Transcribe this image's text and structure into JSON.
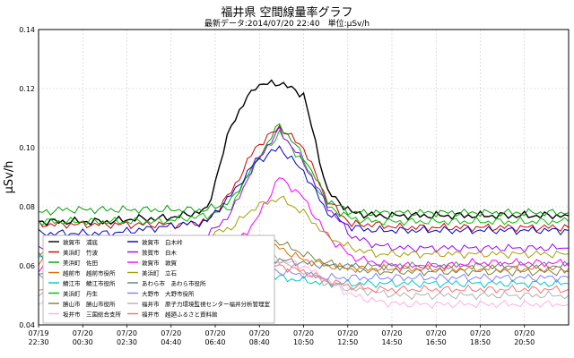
{
  "title": "福井県 空間線量率グラフ",
  "subtitle": "最新データ:2014/07/20 22:40　単位:μSv/h",
  "chart_data": {
    "type": "line",
    "ylabel": "μSv/h",
    "ylim": [
      0.04,
      0.14
    ],
    "yticks": [
      "0.04",
      "0.06",
      "0.08",
      "0.10",
      "0.12",
      "0.14"
    ],
    "xtick_labels": [
      [
        "07/19",
        "22:30"
      ],
      [
        "07/20",
        "00:30"
      ],
      [
        "07/20",
        "02:30"
      ],
      [
        "07/20",
        "04:40"
      ],
      [
        "07/20",
        "06:40"
      ],
      [
        "07/20",
        "08:40"
      ],
      [
        "07/20",
        "10:50"
      ],
      [
        "07/20",
        "12:50"
      ],
      [
        "07/20",
        "14:50"
      ],
      [
        "07/20",
        "16:50"
      ],
      [
        "07/20",
        "18:50"
      ],
      [
        "07/20",
        "20:50"
      ]
    ],
    "grid": true,
    "legend_position": "bottom-left",
    "series": [
      {
        "name": "敦賀市　浦底",
        "color": "#000000",
        "values": [
          0.075,
          0.075,
          0.075,
          0.075,
          0.076,
          0.076,
          0.077,
          0.079,
          0.108,
          0.121,
          0.122,
          0.118,
          0.085,
          0.078,
          0.077,
          0.077,
          0.077,
          0.077,
          0.077,
          0.077,
          0.077,
          0.077,
          0.077
        ]
      },
      {
        "name": "美浜町　竹波",
        "color": "#d00000",
        "values": [
          0.074,
          0.074,
          0.074,
          0.074,
          0.074,
          0.074,
          0.074,
          0.075,
          0.085,
          0.1,
          0.107,
          0.1,
          0.082,
          0.074,
          0.074,
          0.073,
          0.073,
          0.073,
          0.073,
          0.073,
          0.073,
          0.073,
          0.073
        ]
      },
      {
        "name": "美浜町　佐田",
        "color": "#00a000",
        "values": [
          0.078,
          0.079,
          0.079,
          0.079,
          0.079,
          0.079,
          0.079,
          0.079,
          0.082,
          0.095,
          0.108,
          0.097,
          0.082,
          0.078,
          0.078,
          0.078,
          0.078,
          0.078,
          0.078,
          0.078,
          0.078,
          0.078,
          0.078
        ]
      },
      {
        "name": "越前市　越前市役所",
        "color": "#e07000",
        "values": [
          0.061,
          0.061,
          0.061,
          0.061,
          0.061,
          0.062,
          0.063,
          0.065,
          0.067,
          0.068,
          0.066,
          0.062,
          0.06,
          0.059,
          0.059,
          0.059,
          0.059,
          0.059,
          0.059,
          0.059,
          0.059,
          0.059,
          0.059
        ]
      },
      {
        "name": "鯖江市　鯖江市役所",
        "color": "#00c8c8",
        "values": [
          0.063,
          0.062,
          0.062,
          0.062,
          0.061,
          0.062,
          0.063,
          0.065,
          0.06,
          0.058,
          0.056,
          0.055,
          0.054,
          0.054,
          0.054,
          0.054,
          0.054,
          0.054,
          0.054,
          0.054,
          0.054,
          0.054,
          0.054
        ]
      },
      {
        "name": "美浜町　丹生",
        "color": "#00c000",
        "values": [
          0.075,
          0.075,
          0.075,
          0.075,
          0.075,
          0.075,
          0.076,
          0.077,
          0.08,
          0.095,
          0.105,
          0.095,
          0.08,
          0.076,
          0.075,
          0.075,
          0.075,
          0.075,
          0.075,
          0.075,
          0.075,
          0.075,
          0.075
        ]
      },
      {
        "name": "勝山市　勝山市役所",
        "color": "#808040",
        "values": [
          0.058,
          0.058,
          0.058,
          0.058,
          0.058,
          0.059,
          0.06,
          0.063,
          0.068,
          0.07,
          0.068,
          0.064,
          0.061,
          0.059,
          0.058,
          0.058,
          0.058,
          0.058,
          0.058,
          0.058,
          0.058,
          0.058,
          0.058
        ]
      },
      {
        "name": "坂井市　三国総合支所",
        "color": "#ffb0e0",
        "values": [
          0.047,
          0.047,
          0.047,
          0.047,
          0.047,
          0.047,
          0.047,
          0.048,
          0.052,
          0.058,
          0.062,
          0.06,
          0.055,
          0.05,
          0.048,
          0.047,
          0.047,
          0.047,
          0.047,
          0.047,
          0.047,
          0.047,
          0.047
        ]
      },
      {
        "name": "敦賀市　白木峠",
        "color": "#0000c0",
        "values": [
          0.071,
          0.071,
          0.071,
          0.071,
          0.072,
          0.073,
          0.074,
          0.075,
          0.084,
          0.095,
          0.1,
          0.092,
          0.078,
          0.073,
          0.072,
          0.072,
          0.072,
          0.072,
          0.072,
          0.072,
          0.072,
          0.072,
          0.072
        ]
      },
      {
        "name": "敦賀市　白木",
        "color": "#a000ff",
        "values": [
          0.066,
          0.066,
          0.066,
          0.066,
          0.066,
          0.067,
          0.068,
          0.07,
          0.078,
          0.095,
          0.106,
          0.095,
          0.08,
          0.07,
          0.067,
          0.066,
          0.066,
          0.066,
          0.066,
          0.066,
          0.066,
          0.066,
          0.066
        ]
      },
      {
        "name": "敦賀市　敦賀",
        "color": "#ff00ff",
        "values": [
          0.059,
          0.059,
          0.059,
          0.059,
          0.059,
          0.059,
          0.06,
          0.062,
          0.066,
          0.075,
          0.09,
          0.083,
          0.07,
          0.063,
          0.061,
          0.06,
          0.06,
          0.06,
          0.061,
          0.061,
          0.061,
          0.061,
          0.061
        ]
      },
      {
        "name": "美浜町　立石",
        "color": "#a0a000",
        "values": [
          0.064,
          0.064,
          0.064,
          0.064,
          0.065,
          0.066,
          0.068,
          0.07,
          0.073,
          0.08,
          0.083,
          0.078,
          0.07,
          0.066,
          0.064,
          0.064,
          0.064,
          0.064,
          0.064,
          0.064,
          0.064,
          0.064,
          0.064
        ]
      },
      {
        "name": "あわら市　あわら市役所",
        "color": "#608080",
        "values": [
          0.064,
          0.063,
          0.063,
          0.063,
          0.063,
          0.064,
          0.065,
          0.066,
          0.064,
          0.063,
          0.062,
          0.061,
          0.06,
          0.06,
          0.06,
          0.06,
          0.06,
          0.06,
          0.06,
          0.06,
          0.06,
          0.06,
          0.06
        ]
      },
      {
        "name": "大野市　大野市役所",
        "color": "#8080ff",
        "values": [
          0.057,
          0.057,
          0.057,
          0.057,
          0.057,
          0.058,
          0.059,
          0.063,
          0.064,
          0.06,
          0.058,
          0.057,
          0.056,
          0.056,
          0.056,
          0.056,
          0.056,
          0.056,
          0.056,
          0.056,
          0.056,
          0.056,
          0.056
        ]
      },
      {
        "name": "福井市　原子力環境監視センター福井分析管理室",
        "color": "#b0b0b0",
        "values": [
          0.05,
          0.05,
          0.05,
          0.05,
          0.05,
          0.05,
          0.051,
          0.055,
          0.062,
          0.064,
          0.062,
          0.058,
          0.054,
          0.052,
          0.051,
          0.05,
          0.05,
          0.05,
          0.05,
          0.05,
          0.05,
          0.05,
          0.05
        ]
      },
      {
        "name": "福井市　越廼ふるさと資料館",
        "color": "#ff7070",
        "values": [
          0.051,
          0.051,
          0.051,
          0.051,
          0.051,
          0.051,
          0.051,
          0.052,
          0.056,
          0.06,
          0.06,
          0.058,
          0.055,
          0.053,
          0.052,
          0.052,
          0.052,
          0.052,
          0.052,
          0.052,
          0.052,
          0.052,
          0.052
        ]
      }
    ]
  }
}
